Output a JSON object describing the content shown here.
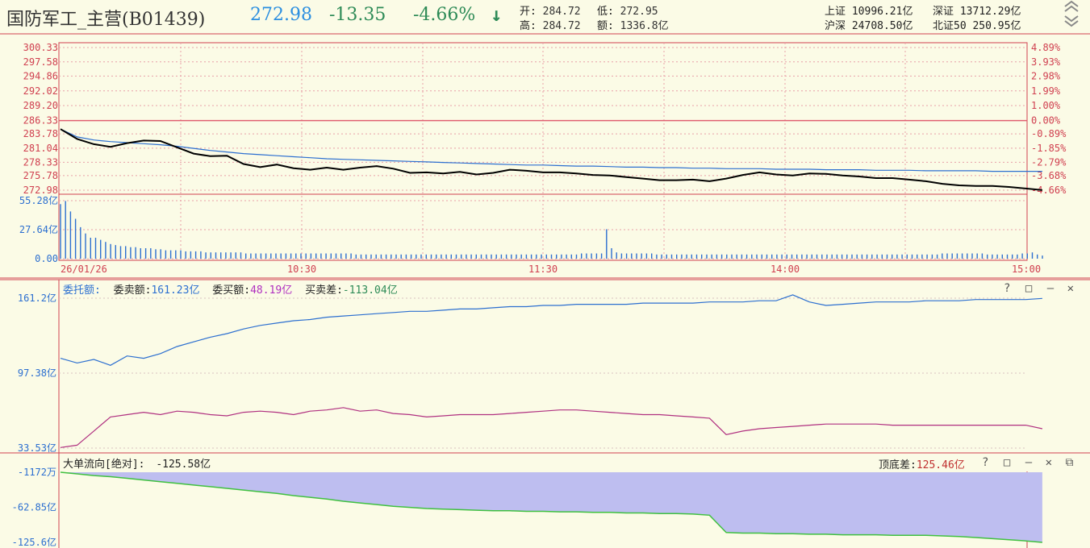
{
  "header": {
    "title": "国防军工_主营(B01439)",
    "price": "272.98",
    "change": "-13.35",
    "change_pct": "-4.66%",
    "arrow": "↓",
    "open_label": "开:",
    "open_value": "284.72",
    "low_label": "低:",
    "low_value": "272.95",
    "high_label": "高:",
    "high_value": "284.72",
    "amount_label": "额:",
    "amount_value": "1336.8亿",
    "sh_label": "上证",
    "sh_value": "10996.21亿",
    "sz_label": "深证",
    "sz_value": "13712.29亿",
    "hs_label": "沪深",
    "hs_value": "24708.50亿",
    "bz_label": "北证50",
    "bz_value": "250.95亿"
  },
  "price_chart": {
    "left_ticks": [
      "300.33",
      "297.58",
      "294.86",
      "292.02",
      "289.20",
      "286.33",
      "283.78",
      "281.04",
      "278.33",
      "275.78",
      "272.98"
    ],
    "right_ticks": [
      "4.89%",
      "3.93%",
      "2.98%",
      "1.99%",
      "1.00%",
      "0.00%",
      "-0.89%",
      "-1.85%",
      "-2.79%",
      "-3.68%",
      "-4.66%"
    ],
    "prev_close": 286.33,
    "ylim": [
      272.98,
      300.33
    ],
    "price_line": [
      284.7,
      282.8,
      281.8,
      281.3,
      282.0,
      282.5,
      282.4,
      281.2,
      280.0,
      279.5,
      279.6,
      278.0,
      277.4,
      277.9,
      277.2,
      276.9,
      277.3,
      276.9,
      277.3,
      277.6,
      277.1,
      276.3,
      276.4,
      276.2,
      276.5,
      276.0,
      276.3,
      276.9,
      276.7,
      276.4,
      276.4,
      276.2,
      275.9,
      275.8,
      275.5,
      275.2,
      274.9,
      274.9,
      275.0,
      274.7,
      275.2,
      275.9,
      276.4,
      276.0,
      275.8,
      276.2,
      276.1,
      275.8,
      275.6,
      275.3,
      275.3,
      275.0,
      274.7,
      274.2,
      273.9,
      273.8,
      273.8,
      273.6,
      273.3,
      273.0
    ],
    "avg_line": [
      284.7,
      283.2,
      282.6,
      282.3,
      282.1,
      281.9,
      281.7,
      281.4,
      281.0,
      280.6,
      280.3,
      280.0,
      279.8,
      279.6,
      279.4,
      279.2,
      279.0,
      278.9,
      278.8,
      278.7,
      278.6,
      278.5,
      278.4,
      278.3,
      278.2,
      278.1,
      278.0,
      277.9,
      277.8,
      277.8,
      277.7,
      277.6,
      277.6,
      277.5,
      277.4,
      277.4,
      277.3,
      277.3,
      277.2,
      277.2,
      277.1,
      277.1,
      277.1,
      277.0,
      277.0,
      277.0,
      276.9,
      276.9,
      276.9,
      276.8,
      276.8,
      276.8,
      276.7,
      276.7,
      276.7,
      276.7,
      276.6,
      276.6,
      276.6,
      276.6
    ]
  },
  "volume_chart": {
    "ticks": [
      "55.28亿",
      "27.64亿",
      "0.00"
    ],
    "ylim": [
      0,
      55.28
    ],
    "bars": [
      52,
      55,
      45,
      38,
      30,
      24,
      20,
      20,
      18,
      16,
      14,
      13,
      12,
      12,
      11,
      11,
      10,
      10,
      10,
      9,
      9,
      8,
      8,
      8,
      8,
      7,
      7,
      7,
      7,
      6,
      6,
      6,
      6,
      6,
      6,
      6,
      6,
      5,
      5,
      5,
      5,
      5,
      5,
      5,
      5,
      5,
      5,
      5,
      5,
      5,
      5,
      5,
      5,
      5,
      5,
      5,
      5,
      5,
      5,
      4,
      4,
      4,
      4,
      4,
      4,
      4,
      4,
      4,
      4,
      4,
      4,
      4,
      4,
      4,
      4,
      4,
      4,
      4,
      4,
      4,
      4,
      4,
      4,
      4,
      4,
      4,
      4,
      4,
      4,
      4,
      4,
      4,
      4,
      4,
      4,
      4,
      4,
      4,
      4,
      4,
      4,
      4,
      4,
      4,
      5,
      5,
      5,
      5,
      5,
      28,
      10,
      6,
      5,
      5,
      5,
      5,
      5,
      5,
      5,
      4,
      4,
      4,
      4,
      4,
      4,
      4,
      4,
      4,
      4,
      4,
      4,
      4,
      4,
      4,
      4,
      4,
      4,
      4,
      4,
      4,
      4,
      4,
      4,
      4,
      4,
      4,
      4,
      4,
      4,
      4,
      4,
      4,
      4,
      4,
      4,
      4,
      4,
      4,
      4,
      4,
      4,
      4,
      4,
      4,
      4,
      4,
      4,
      4,
      4,
      4,
      4,
      4,
      4,
      4,
      4,
      4,
      5,
      5,
      5,
      5,
      5,
      5,
      5,
      5,
      5,
      4,
      4,
      4,
      4,
      4,
      4,
      4,
      5,
      5,
      6,
      4,
      3
    ],
    "x_labels": [
      "26/01/26",
      "10:30",
      "11:30",
      "14:00",
      "15:00"
    ]
  },
  "order_panel": {
    "label": "委托额:",
    "sell_label": "委卖额:",
    "sell_value": "161.23亿",
    "buy_label": "委买额:",
    "buy_value": "48.19亿",
    "diff_label": "买卖差:",
    "diff_value": "-113.04亿",
    "ticks": [
      "161.2亿",
      "97.38亿",
      "33.53亿"
    ],
    "ylim": [
      33.53,
      161.2
    ],
    "sell_line": [
      110,
      106,
      109,
      104,
      112,
      110,
      114,
      120,
      124,
      128,
      131,
      135,
      138,
      140,
      142,
      143,
      145,
      146,
      147,
      148,
      149,
      150,
      150,
      151,
      152,
      152,
      153,
      154,
      154,
      155,
      155,
      156,
      156,
      156,
      156,
      157,
      157,
      157,
      157,
      158,
      158,
      158,
      159,
      159,
      164,
      158,
      155,
      156,
      157,
      158,
      158,
      158,
      159,
      159,
      159,
      160,
      160,
      160,
      160,
      161
    ],
    "buy_line": [
      34,
      36,
      48,
      60,
      62,
      64,
      62,
      65,
      64,
      62,
      61,
      64,
      65,
      64,
      62,
      65,
      66,
      68,
      65,
      66,
      63,
      62,
      60,
      61,
      62,
      62,
      62,
      63,
      64,
      65,
      66,
      66,
      65,
      64,
      63,
      62,
      62,
      61,
      60,
      59,
      45,
      48,
      50,
      51,
      52,
      53,
      54,
      54,
      54,
      54,
      53,
      53,
      53,
      53,
      53,
      53,
      53,
      53,
      53,
      50
    ]
  },
  "bigorder_panel": {
    "label": "大单流向[绝对]:",
    "value": "-125.58亿",
    "right_label": "顶底差:",
    "right_value": "125.46亿",
    "ticks": [
      "-1172万",
      "-62.85亿",
      "-125.6亿"
    ],
    "ylim": [
      -125.6,
      -0.1172
    ],
    "flow_line": [
      -0.12,
      -3,
      -6,
      -8,
      -11,
      -14,
      -17,
      -20,
      -23,
      -26,
      -29,
      -32,
      -35,
      -38,
      -42,
      -45,
      -48,
      -52,
      -55,
      -58,
      -61,
      -63,
      -65,
      -66,
      -67,
      -68,
      -69,
      -69,
      -70,
      -70,
      -71,
      -71,
      -72,
      -72,
      -73,
      -73,
      -74,
      -74,
      -75,
      -77,
      -108,
      -109,
      -109,
      -110,
      -110,
      -111,
      -111,
      -112,
      -112,
      -112,
      -113,
      -113,
      -113,
      -114,
      -115,
      -117,
      -119,
      -121,
      -123,
      -125.58
    ]
  },
  "icons": {
    "scroll_up": "double-chevron-up-icon",
    "scroll_down": "double-chevron-down-icon",
    "help": "?",
    "restore": "□",
    "minimize": "—",
    "close": "✕"
  },
  "colors": {
    "price_line": "#000000",
    "avg_line": "#2c6fd0",
    "prev_close_line": "#e06070",
    "volume_bar": "#2c6fd0",
    "sell_line": "#2c6fd0",
    "buy_line": "#b03080",
    "flow_fill": "#bebef0",
    "flow_line": "#40c040",
    "axis_red": "#d04050"
  }
}
